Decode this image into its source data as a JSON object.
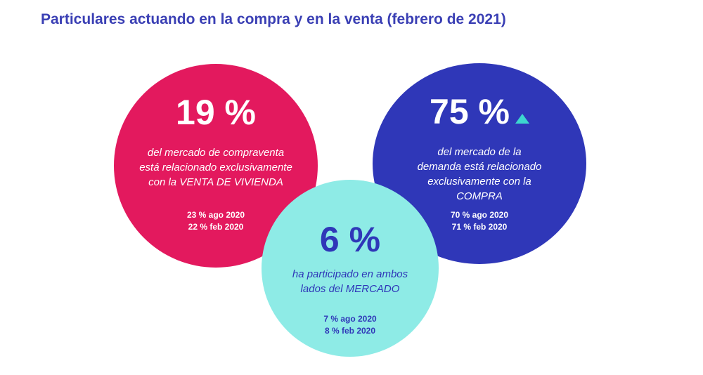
{
  "title": "Particulares actuando en la compra y en la venta (febrero de 2021)",
  "colors": {
    "title": "#3a3fb4",
    "venta": "#e3195e",
    "compra": "#2f37b8",
    "ambos": "#8eebe6",
    "arrow": "#3dd6cf"
  },
  "venta": {
    "value": "19 %",
    "desc": [
      "del mercado de compraventa",
      "está relacionado exclusivamente",
      "con la VENTA DE VIVIENDA"
    ],
    "history": [
      "23 % ago 2020",
      "22 % feb 2020"
    ]
  },
  "compra": {
    "value": "75 %",
    "trend_icon": "triangle-up-icon",
    "desc": [
      "del mercado de la",
      "demanda está relacionado",
      "exclusivamente con la",
      "COMPRA"
    ],
    "history": [
      "70 % ago 2020",
      "71 % feb 2020"
    ]
  },
  "ambos": {
    "value": "6 %",
    "desc": [
      "ha participado en ambos",
      "lados del MERCADO"
    ],
    "history": [
      "7 % ago 2020",
      "8 % feb 2020"
    ]
  }
}
